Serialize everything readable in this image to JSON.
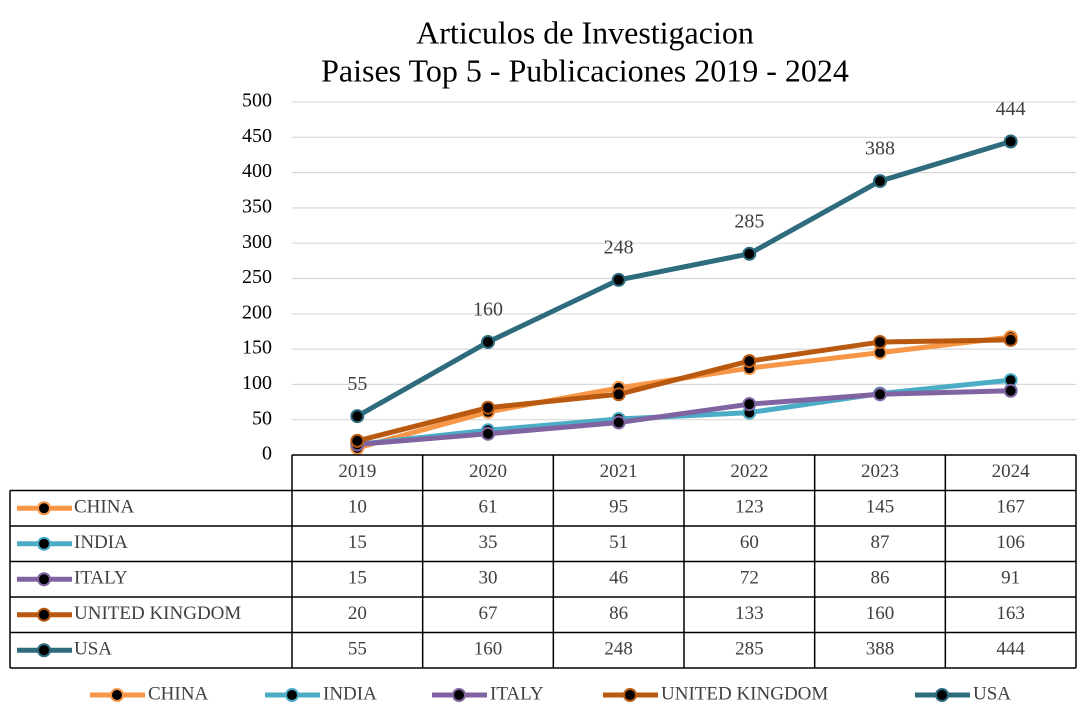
{
  "chart_data": {
    "type": "line",
    "title": "Articulos de Investigacion",
    "subtitle": "Paises Top 5 - Publicaciones 2019 - 2024",
    "categories": [
      "2019",
      "2020",
      "2021",
      "2022",
      "2023",
      "2024"
    ],
    "series": [
      {
        "name": "CHINA",
        "color": "#f79646",
        "values": [
          10,
          61,
          95,
          123,
          145,
          167
        ]
      },
      {
        "name": "INDIA",
        "color": "#4bacc6",
        "values": [
          15,
          35,
          51,
          60,
          87,
          106
        ]
      },
      {
        "name": "ITALY",
        "color": "#8064a2",
        "values": [
          15,
          30,
          46,
          72,
          86,
          91
        ]
      },
      {
        "name": "UNITED KINGDOM",
        "color": "#b9590f",
        "values": [
          20,
          67,
          86,
          133,
          160,
          163
        ]
      },
      {
        "name": "USA",
        "color": "#2d6b7d",
        "values": [
          55,
          160,
          248,
          285,
          388,
          444
        ],
        "data_labels": true
      }
    ],
    "ylim": [
      0,
      500
    ],
    "yticks": [
      0,
      50,
      100,
      150,
      200,
      250,
      300,
      350,
      400,
      450,
      500
    ],
    "grid": true,
    "data_table": true,
    "legend": "bottom"
  }
}
